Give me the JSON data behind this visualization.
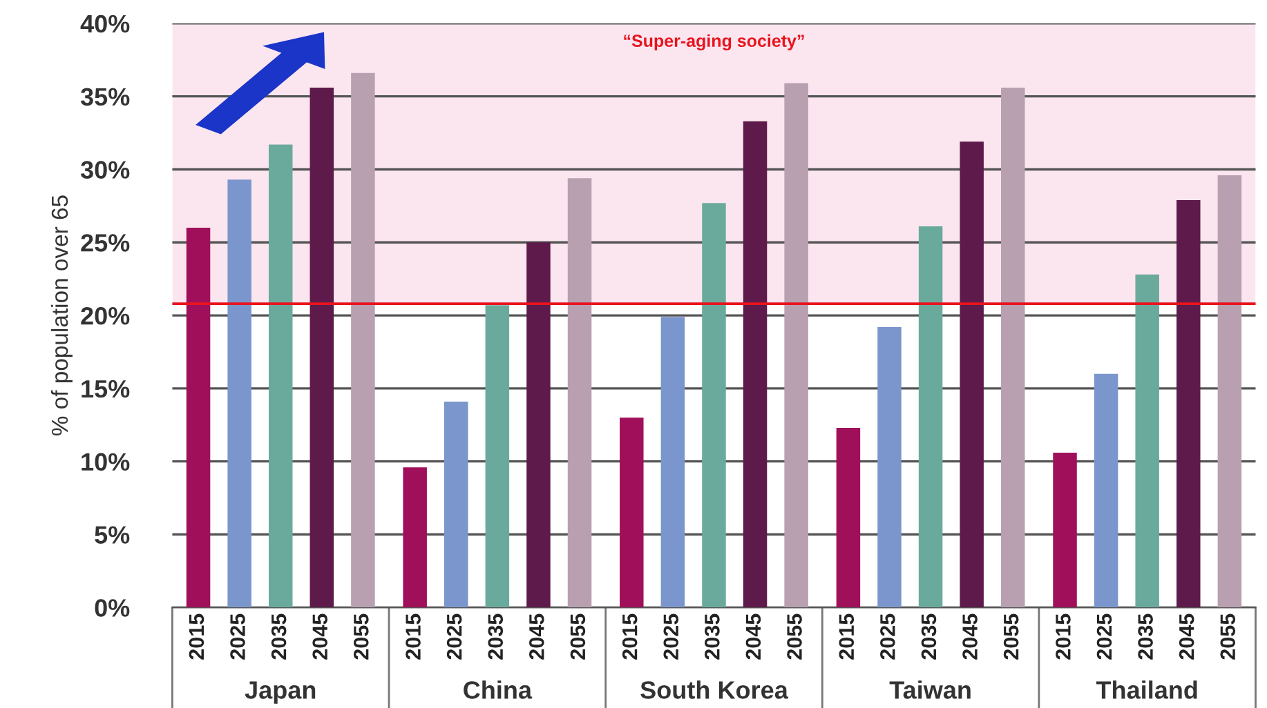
{
  "chart_data": {
    "type": "bar",
    "ylabel": "% of population over 65",
    "categories": [
      "Japan",
      "China",
      "South Korea",
      "Taiwan",
      "Thailand"
    ],
    "series": [
      {
        "name": "2015",
        "color": "#a0105a",
        "values": [
          26.0,
          9.6,
          13.0,
          12.3,
          10.6
        ]
      },
      {
        "name": "2025",
        "color": "#7b96cc",
        "values": [
          29.3,
          14.1,
          19.9,
          19.2,
          16.0
        ]
      },
      {
        "name": "2035",
        "color": "#6aaa9c",
        "values": [
          31.7,
          20.7,
          27.7,
          26.1,
          22.8
        ]
      },
      {
        "name": "2045",
        "color": "#5e1a4a",
        "values": [
          35.6,
          25.0,
          33.3,
          31.9,
          27.9
        ]
      },
      {
        "name": "2055",
        "color": "#b8a0b0",
        "values": [
          36.6,
          29.4,
          35.9,
          35.6,
          29.6
        ]
      }
    ],
    "ylim": [
      0,
      40
    ],
    "yticks": [
      {
        "value": 0,
        "label": "0%"
      },
      {
        "value": 5,
        "label": "5%"
      },
      {
        "value": 10,
        "label": "10%"
      },
      {
        "value": 15,
        "label": "15%"
      },
      {
        "value": 20,
        "label": "20%"
      },
      {
        "value": 25,
        "label": "25%"
      },
      {
        "value": 30,
        "label": "30%"
      },
      {
        "value": 35,
        "label": "35%"
      },
      {
        "value": 40,
        "label": "40%"
      }
    ],
    "grid": "y",
    "legend": false,
    "bands": [
      {
        "axis": "y",
        "from": 20.8,
        "to": 40,
        "label": "“Super-aging society”",
        "color": "#fbe6f0"
      }
    ],
    "ref_lines": [
      {
        "axis": "y",
        "value": 20.8,
        "color": "#e8141e"
      }
    ]
  }
}
